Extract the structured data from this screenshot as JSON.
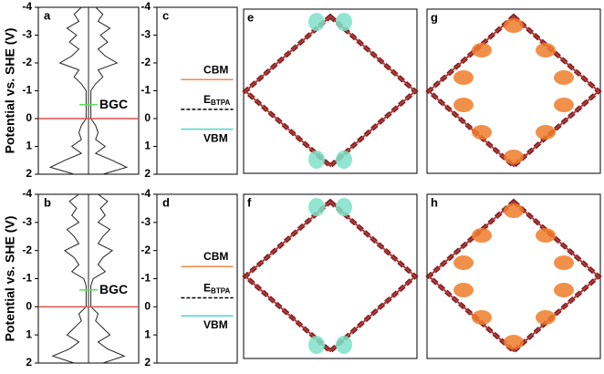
{
  "chart_data": [
    {
      "type": "dos",
      "label": "a",
      "ylabel": "Potential vs. SHE (V)",
      "ylim": [
        -4,
        2
      ],
      "yticks": [
        -4,
        -3,
        -2,
        -1,
        0,
        1,
        2
      ],
      "xlim": [
        -1,
        1
      ],
      "potential": [
        -4,
        -3.75,
        -3.5,
        -3.25,
        -3,
        -2.75,
        -2.5,
        -2.25,
        -2,
        -1.75,
        -1.5,
        -1.25,
        -1,
        -0.75,
        -0.5,
        -0.25,
        0,
        0.25,
        0.5,
        0.75,
        1,
        1.25,
        1.5,
        1.75,
        2
      ],
      "density": [
        0.15,
        0.3,
        0.2,
        0.45,
        0.25,
        0.4,
        0.2,
        0.35,
        0.6,
        0.2,
        0.3,
        0.15,
        0.05,
        0.05,
        0.05,
        0.05,
        0.05,
        0.15,
        0.2,
        0.15,
        0.35,
        0.15,
        0.5,
        0.8,
        0.3
      ],
      "levels": [
        {
          "name": "BGC",
          "value": -0.5,
          "color": "#5de05d"
        },
        {
          "value": 0,
          "color": "#e05050"
        }
      ]
    },
    {
      "type": "levels",
      "label": "c",
      "ylim": [
        -4,
        2
      ],
      "yticks": [
        -4,
        -3,
        -2,
        -1,
        0,
        1,
        2
      ],
      "levels": [
        {
          "name": "CBM",
          "value": -1.4,
          "color": "#f08a4b"
        },
        {
          "name": "E",
          "sub": "BTPA",
          "value": -0.33,
          "color": "#000000",
          "dashed": true
        },
        {
          "name": "VBM",
          "value": 0.38,
          "color": "#4fd8c8"
        }
      ]
    },
    {
      "type": "dos",
      "label": "b",
      "ylabel": "Potential vs. SHE (V)",
      "ylim": [
        -4,
        2
      ],
      "yticks": [
        -4,
        -3,
        -2,
        -1,
        0,
        1,
        2
      ],
      "xlim": [
        -1,
        1
      ],
      "potential": [
        -4,
        -3.75,
        -3.5,
        -3.25,
        -3,
        -2.75,
        -2.5,
        -2.25,
        -2,
        -1.75,
        -1.5,
        -1.25,
        -1,
        -0.75,
        -0.5,
        -0.25,
        0,
        0.25,
        0.5,
        0.75,
        1,
        1.25,
        1.5,
        1.75,
        2
      ],
      "density": [
        0.2,
        0.4,
        0.25,
        0.35,
        0.2,
        0.45,
        0.3,
        0.2,
        0.5,
        0.3,
        0.2,
        0.35,
        0.1,
        0.05,
        0.05,
        0.05,
        0.05,
        0.2,
        0.15,
        0.3,
        0.45,
        0.2,
        0.4,
        0.75,
        0.3
      ],
      "levels": [
        {
          "name": "BGC",
          "value": -0.6,
          "color": "#5de05d"
        },
        {
          "value": 0,
          "color": "#e05050"
        }
      ]
    },
    {
      "type": "levels",
      "label": "d",
      "ylim": [
        -4,
        2
      ],
      "yticks": [
        -4,
        -3,
        -2,
        -1,
        0,
        1,
        2
      ],
      "levels": [
        {
          "name": "CBM",
          "value": -1.43,
          "color": "#f08a4b"
        },
        {
          "name": "E",
          "sub": "BTPA",
          "value": -0.32,
          "color": "#000000",
          "dashed": true
        },
        {
          "name": "VBM",
          "value": 0.32,
          "color": "#4fd8c8"
        }
      ]
    }
  ],
  "structure_panels": [
    {
      "label": "e"
    },
    {
      "label": "g"
    },
    {
      "label": "f"
    },
    {
      "label": "h"
    }
  ]
}
